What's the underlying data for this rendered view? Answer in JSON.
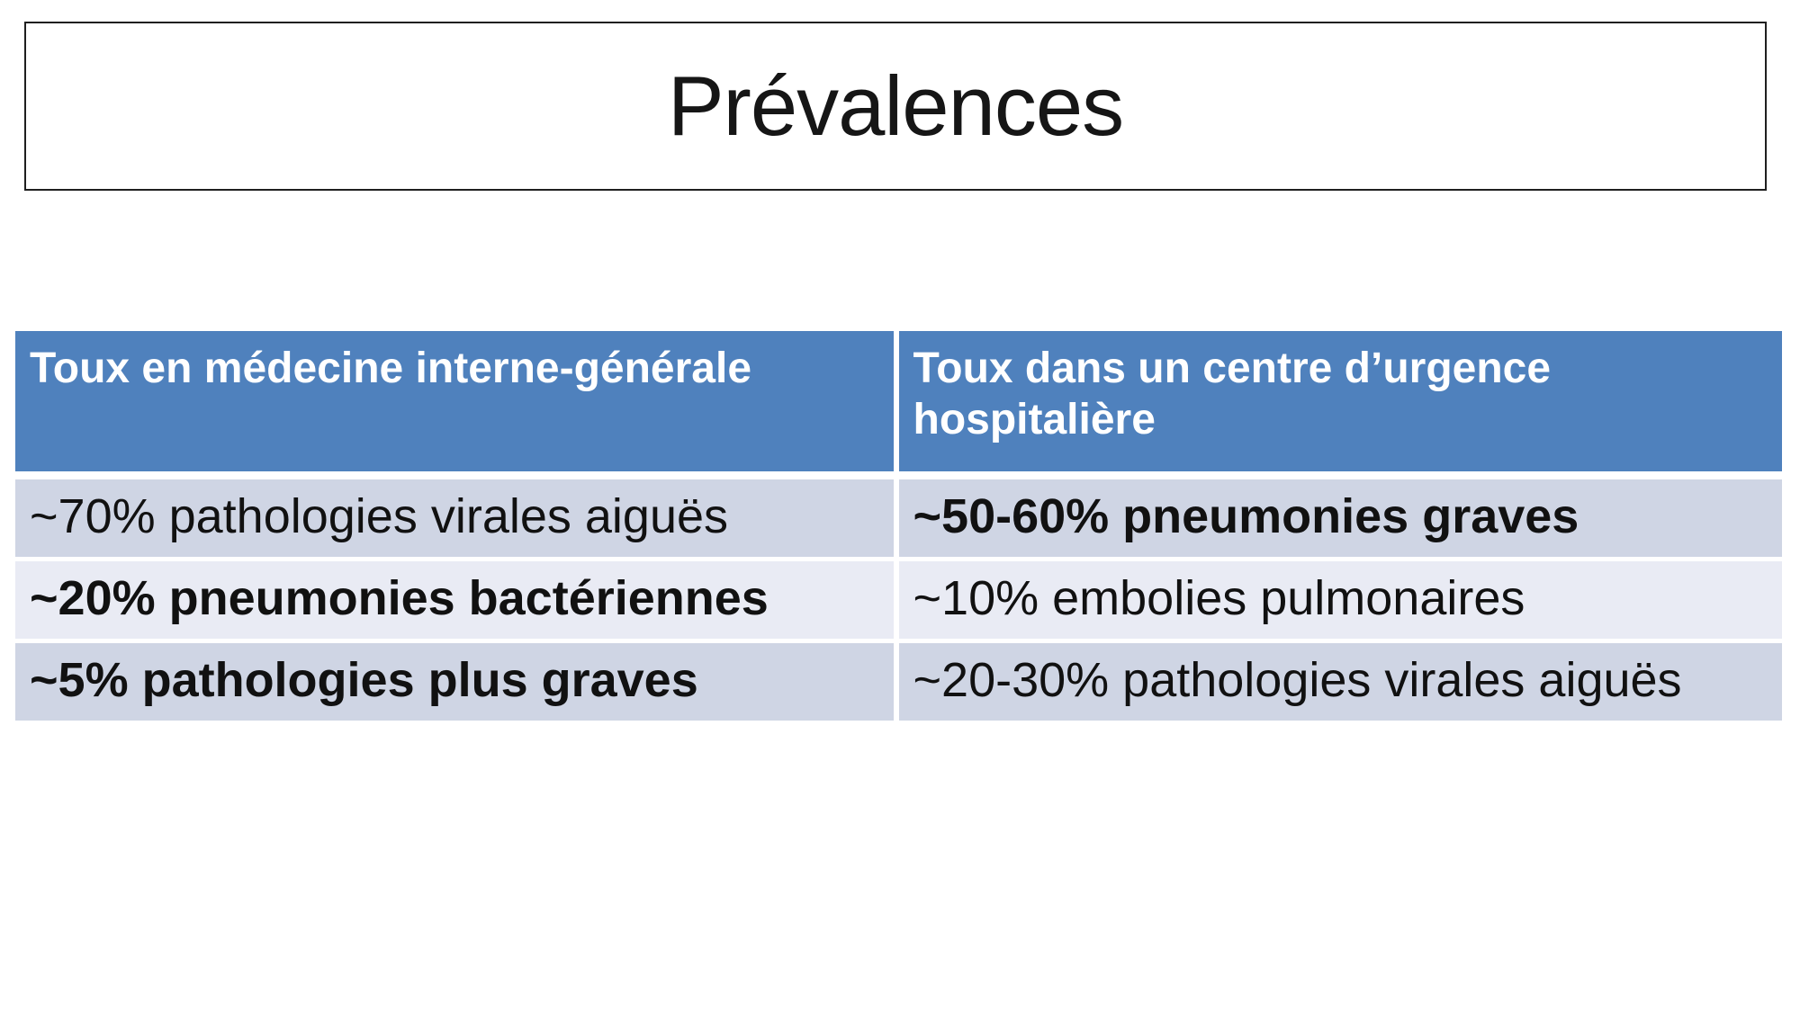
{
  "slide": {
    "title": "Prévalences"
  },
  "colors": {
    "header_bg": "#4F81BD",
    "header_text": "#FFFFFF",
    "band_a_bg": "#CFD5E4",
    "band_b_bg": "#E9EBF4",
    "body_text": "#111111",
    "title_border": "#1F1F1F"
  },
  "table": {
    "columns": [
      {
        "header": "Toux en médecine interne-générale"
      },
      {
        "header": "Toux dans un centre d’urgence hospitalière"
      }
    ],
    "rows": [
      {
        "left": {
          "text": "~70% pathologies virales aiguës",
          "bold": false
        },
        "right": {
          "text": "~50-60% pneumonies graves",
          "bold": true
        }
      },
      {
        "left": {
          "text": "~20% pneumonies bactériennes",
          "bold": true
        },
        "right": {
          "text": "~10% embolies pulmonaires",
          "bold": false
        }
      },
      {
        "left": {
          "text": "~5% pathologies plus graves",
          "bold": true
        },
        "right": {
          "text": "~20-30% pathologies virales aiguës",
          "bold": false
        }
      }
    ]
  }
}
